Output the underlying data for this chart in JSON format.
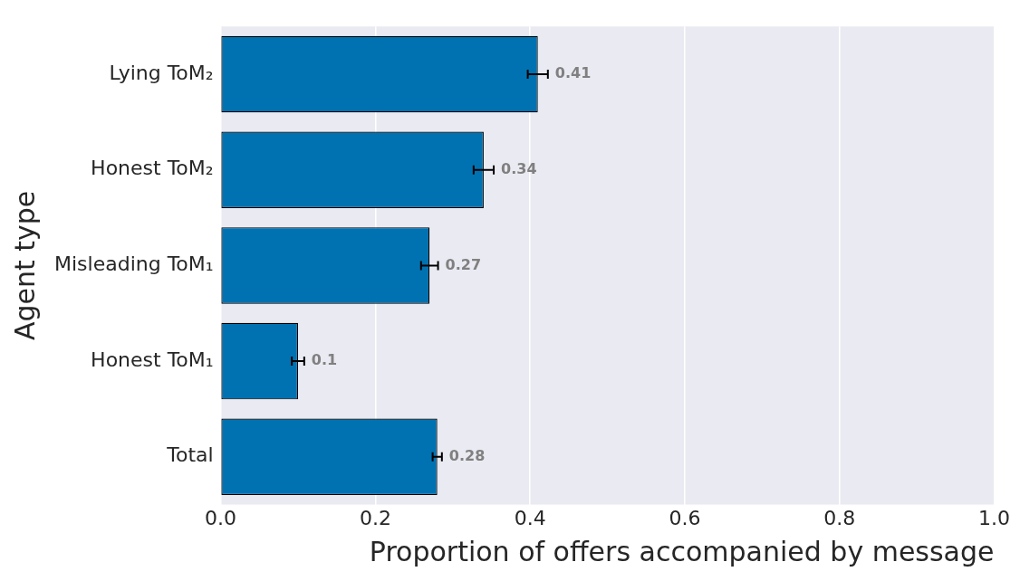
{
  "chart_data": {
    "type": "bar",
    "orientation": "horizontal",
    "xlabel": "Proportion of offers accompanied by message",
    "ylabel": "Agent type",
    "categories": [
      "Lying ToM₂",
      "Honest ToM₂",
      "Misleading ToM₁",
      "Honest ToM₁",
      "Total"
    ],
    "values": [
      0.41,
      0.34,
      0.27,
      0.1,
      0.28
    ],
    "errors": [
      0.013,
      0.013,
      0.011,
      0.008,
      0.006
    ],
    "color": "#0072b2",
    "data_labels": true,
    "xlim": [
      0,
      1
    ],
    "xticks": [
      {
        "value": 0,
        "label": "0.0"
      },
      0.2,
      0.4,
      0.6,
      0.8,
      {
        "value": 1,
        "label": "1.0"
      }
    ],
    "grid": "x",
    "legend": false
  }
}
